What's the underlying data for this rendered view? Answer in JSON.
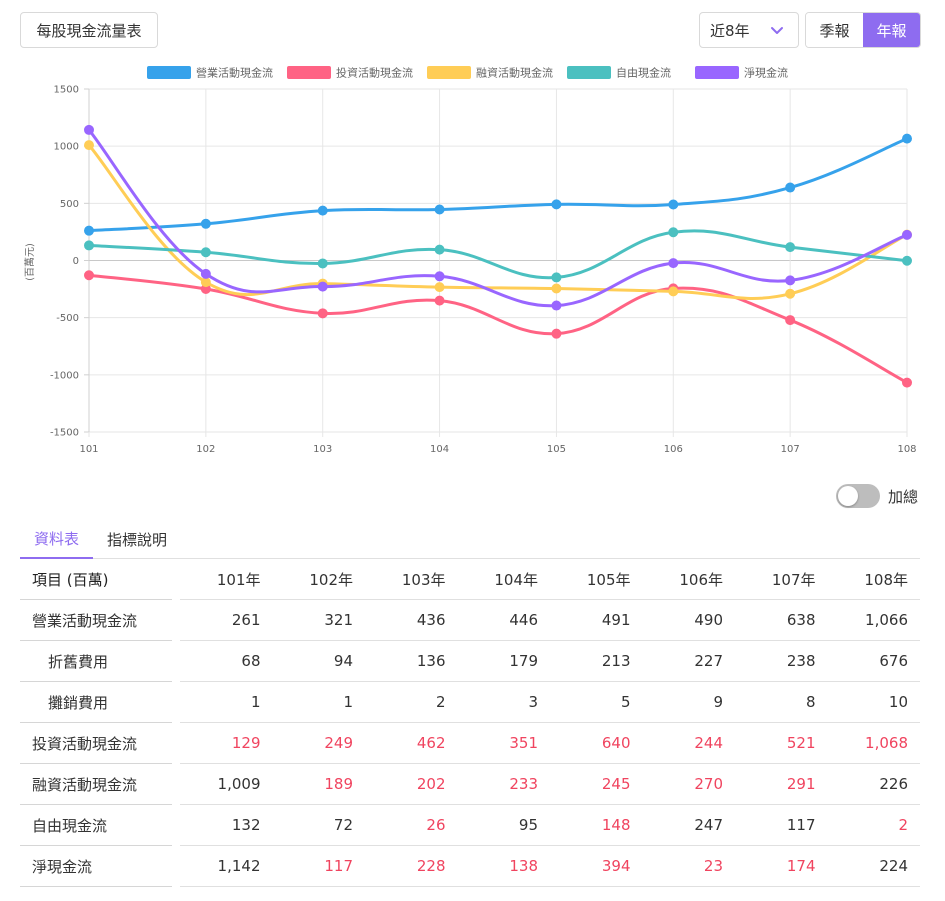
{
  "header": {
    "title": "每股現金流量表",
    "period": "近8年",
    "tabs": [
      "季報",
      "年報"
    ],
    "active_tab": "年報"
  },
  "chart_data": {
    "type": "line",
    "categories": [
      "101",
      "102",
      "103",
      "104",
      "105",
      "106",
      "107",
      "108"
    ],
    "ylabel": "(百萬元)",
    "ylim": [
      -1500,
      1500
    ],
    "yticks": [
      1500,
      1000,
      500,
      0,
      -500,
      -1000,
      -1500
    ],
    "grid": true,
    "legend_position": "top",
    "series": [
      {
        "name": "營業活動現金流",
        "color": "#36a2eb",
        "values": [
          261,
          321,
          436,
          446,
          491,
          490,
          638,
          1066
        ]
      },
      {
        "name": "投資活動現金流",
        "color": "#ff6384",
        "values": [
          -129,
          -249,
          -462,
          -351,
          -640,
          -244,
          -521,
          -1068
        ]
      },
      {
        "name": "融資活動現金流",
        "color": "#ffcd56",
        "values": [
          1009,
          -189,
          -202,
          -233,
          -245,
          -270,
          -291,
          226
        ]
      },
      {
        "name": "自由現金流",
        "color": "#4bc0c0",
        "values": [
          132,
          72,
          -26,
          95,
          -148,
          247,
          117,
          -2
        ]
      },
      {
        "name": "淨現金流",
        "color": "#9966ff",
        "values": [
          1142,
          -117,
          -228,
          -138,
          -394,
          -23,
          -174,
          224
        ]
      }
    ]
  },
  "toggle": {
    "label": "加總",
    "on": false
  },
  "tabs2": {
    "items": [
      "資料表",
      "指標說明"
    ],
    "active": "資料表"
  },
  "table": {
    "header_label": "項目 (百萬)",
    "years": [
      "101年",
      "102年",
      "103年",
      "104年",
      "105年",
      "106年",
      "107年",
      "108年"
    ],
    "rows": [
      {
        "label": "營業活動現金流",
        "indent": false,
        "values": [
          "261",
          "321",
          "436",
          "446",
          "491",
          "490",
          "638",
          "1,066"
        ],
        "negative": [
          false,
          false,
          false,
          false,
          false,
          false,
          false,
          false
        ]
      },
      {
        "label": "折舊費用",
        "indent": true,
        "values": [
          "68",
          "94",
          "136",
          "179",
          "213",
          "227",
          "238",
          "676"
        ],
        "negative": [
          false,
          false,
          false,
          false,
          false,
          false,
          false,
          false
        ]
      },
      {
        "label": "攤銷費用",
        "indent": true,
        "values": [
          "1",
          "1",
          "2",
          "3",
          "5",
          "9",
          "8",
          "10"
        ],
        "negative": [
          false,
          false,
          false,
          false,
          false,
          false,
          false,
          false
        ]
      },
      {
        "label": "投資活動現金流",
        "indent": false,
        "values": [
          "129",
          "249",
          "462",
          "351",
          "640",
          "244",
          "521",
          "1,068"
        ],
        "negative": [
          true,
          true,
          true,
          true,
          true,
          true,
          true,
          true
        ]
      },
      {
        "label": "融資活動現金流",
        "indent": false,
        "values": [
          "1,009",
          "189",
          "202",
          "233",
          "245",
          "270",
          "291",
          "226"
        ],
        "negative": [
          false,
          true,
          true,
          true,
          true,
          true,
          true,
          false
        ]
      },
      {
        "label": "自由現金流",
        "indent": false,
        "values": [
          "132",
          "72",
          "26",
          "95",
          "148",
          "247",
          "117",
          "2"
        ],
        "negative": [
          false,
          false,
          true,
          false,
          true,
          false,
          false,
          true
        ]
      },
      {
        "label": "淨現金流",
        "indent": false,
        "values": [
          "1,142",
          "117",
          "228",
          "138",
          "394",
          "23",
          "174",
          "224"
        ],
        "negative": [
          false,
          true,
          true,
          true,
          true,
          true,
          true,
          false
        ]
      }
    ]
  }
}
